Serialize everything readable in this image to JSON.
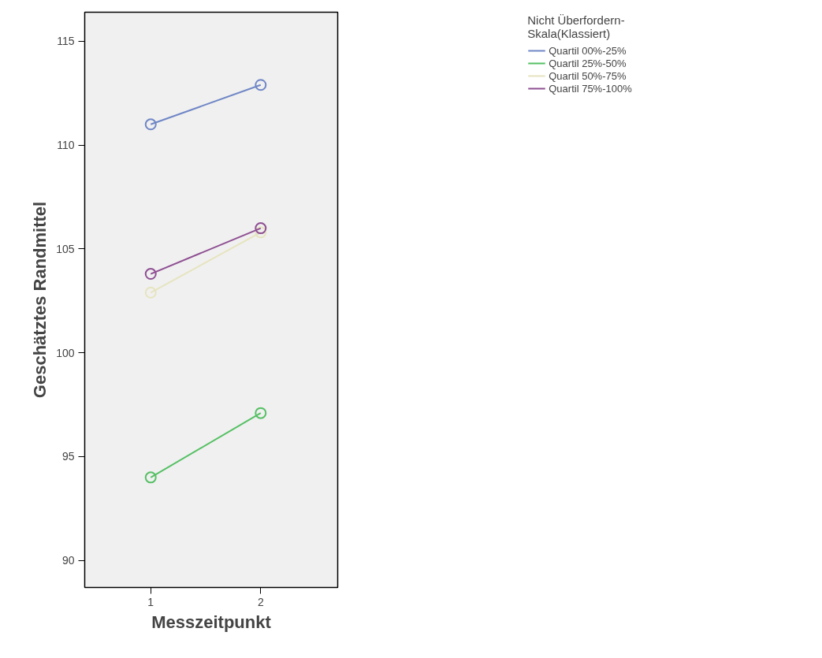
{
  "chart_data": {
    "type": "line",
    "xlabel": "Messzeitpunkt",
    "ylabel": "Geschätztes Randmittel",
    "legend_title": "Nicht Überfordern- Skala(Klassiert)",
    "x": [
      1,
      2
    ],
    "xlim": [
      0.4,
      2.7
    ],
    "xticks": [
      1,
      2
    ],
    "ylim": [
      88.7,
      116.4
    ],
    "yticks": [
      90,
      95,
      100,
      105,
      110,
      115
    ],
    "grid": false,
    "legend": "right",
    "marker": "circle",
    "line_style": "solid",
    "series": [
      {
        "name": "Quartil 00%-25%",
        "color": "#6f86c6",
        "values": [
          111.0,
          112.9
        ]
      },
      {
        "name": "Quartil 25%-50%",
        "color": "#55c064",
        "values": [
          94.0,
          97.1
        ]
      },
      {
        "name": "Quartil 50%-75%",
        "color": "#e6e4bf",
        "values": [
          102.9,
          105.8
        ]
      },
      {
        "name": "Quartil 75%-100%",
        "color": "#8e4e92",
        "values": [
          103.8,
          106.0
        ]
      }
    ]
  }
}
